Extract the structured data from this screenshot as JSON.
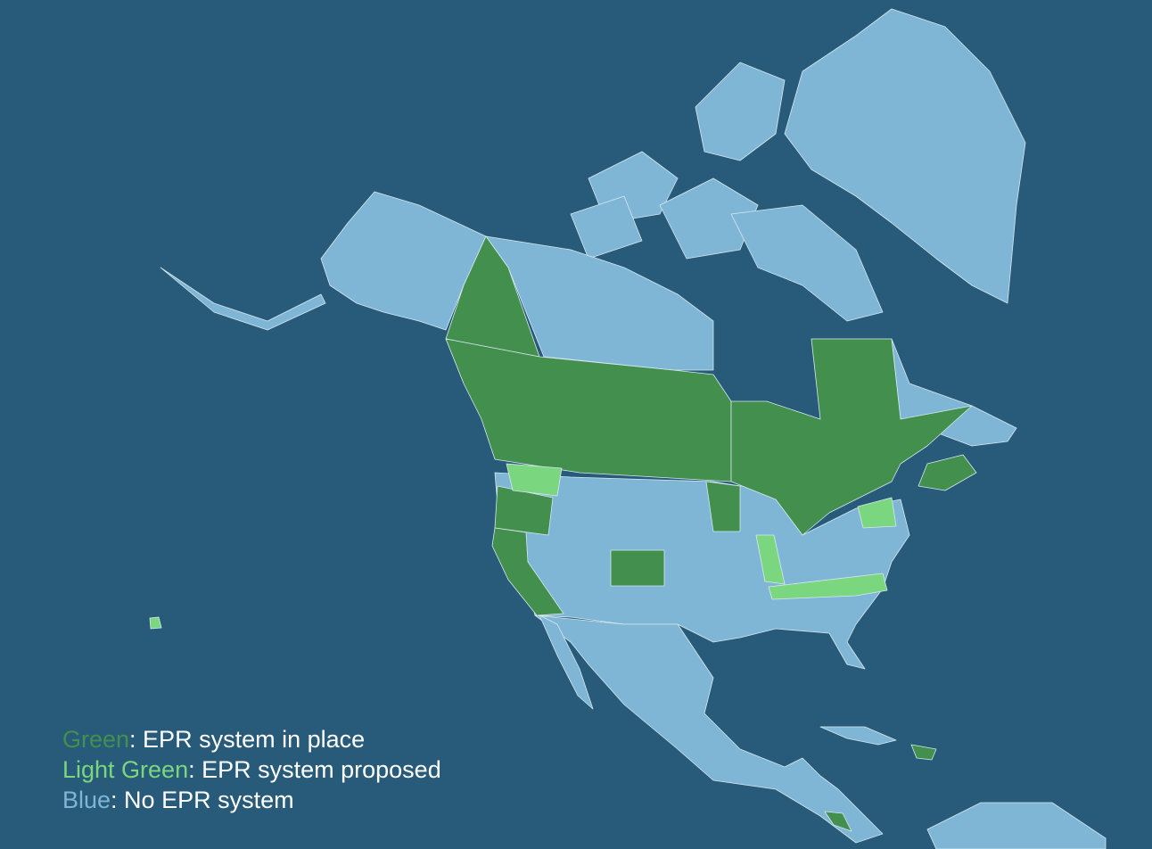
{
  "legend": [
    {
      "label": "Green",
      "text": ": EPR system in place",
      "color": "#428f4e"
    },
    {
      "label": "Light Green",
      "text": ": EPR system proposed",
      "color": "#7bd680"
    },
    {
      "label": "Blue",
      "text": ": No EPR system",
      "color": "#7fb6d5"
    }
  ]
}
